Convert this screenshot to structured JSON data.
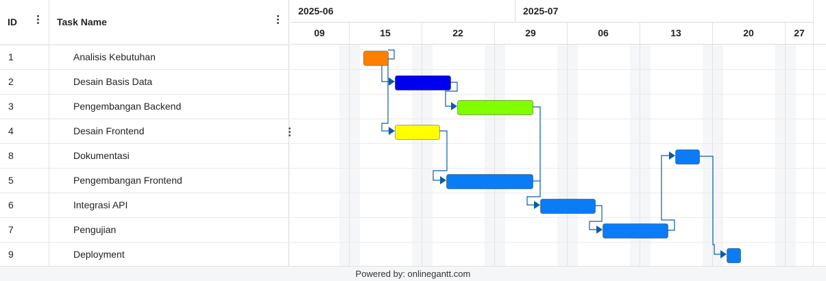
{
  "grid": {
    "columns": {
      "id": "ID",
      "name": "Task Name"
    },
    "rows": [
      {
        "id": "1",
        "name": "Analisis Kebutuhan"
      },
      {
        "id": "2",
        "name": "Desain Basis Data"
      },
      {
        "id": "3",
        "name": "Pengembangan Backend"
      },
      {
        "id": "4",
        "name": "Desain Frontend"
      },
      {
        "id": "8",
        "name": "Dokumentasi"
      },
      {
        "id": "5",
        "name": "Pengembangan Frontend"
      },
      {
        "id": "6",
        "name": "Integrasi API"
      },
      {
        "id": "7",
        "name": "Pengujian"
      },
      {
        "id": "9",
        "name": "Deployment"
      }
    ]
  },
  "timeline": {
    "months": [
      "2025-06",
      "2025-07"
    ],
    "weeks": [
      "09",
      "15",
      "22",
      "29",
      "06",
      "13",
      "20",
      "27"
    ]
  },
  "tasks": [
    {
      "id": "1",
      "color": "#ff8000"
    },
    {
      "id": "2",
      "color": "#0000ee"
    },
    {
      "id": "3",
      "color": "#7fff00"
    },
    {
      "id": "4",
      "color": "#ffff00"
    },
    {
      "id": "8",
      "color": "#0a7cf5"
    },
    {
      "id": "5",
      "color": "#0a7cf5"
    },
    {
      "id": "6",
      "color": "#0a7cf5"
    },
    {
      "id": "7",
      "color": "#0a7cf5"
    },
    {
      "id": "9",
      "color": "#0a7cf5"
    }
  ],
  "footer": {
    "text": "Powered by: onlinegantt.com"
  }
}
